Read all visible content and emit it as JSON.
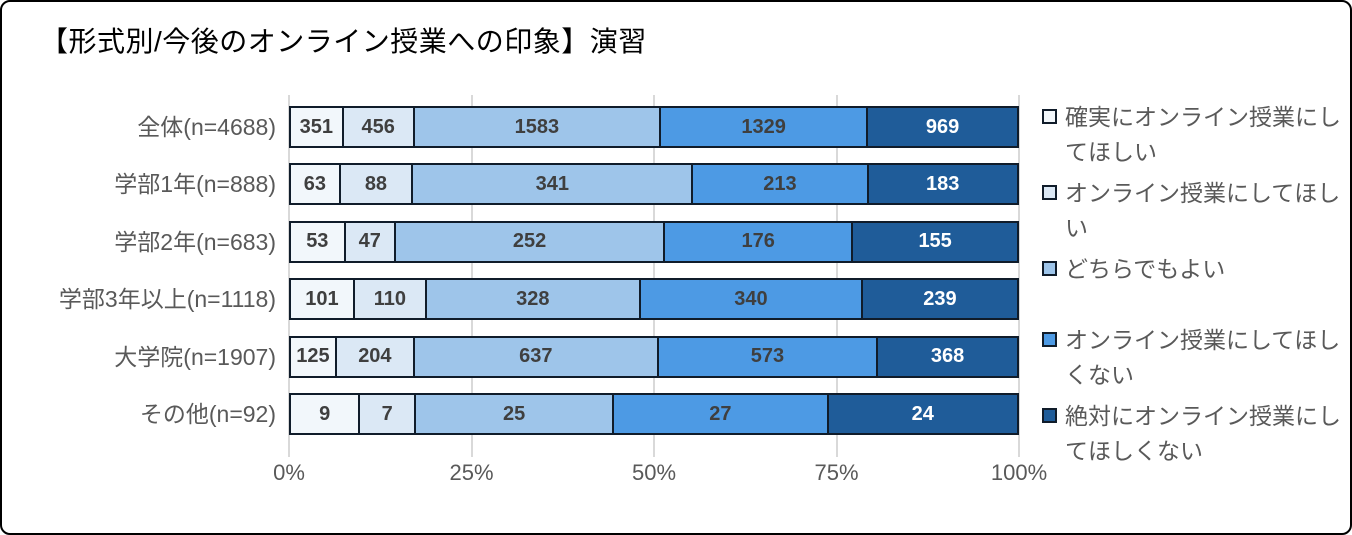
{
  "title": "【形式別/今後のオンライン授業への印象】演習",
  "chart_data": {
    "type": "bar",
    "subtype": "100pct-stacked-horizontal",
    "title": "【形式別/今後のオンライン授業への印象】演習",
    "categories": [
      "全体(n=4688)",
      "学部1年(n=888)",
      "学部2年(n=683)",
      "学部3年以上(n=1118)",
      "大学院(n=1907)",
      "その他(n=92)"
    ],
    "series": [
      {
        "name": "確実にオンライン授業にしてほしい",
        "color": "#F2F7FB",
        "value_text_color": "#3F3F3F",
        "values": [
          351,
          63,
          53,
          101,
          125,
          9
        ]
      },
      {
        "name": "オンライン授業にしてほしい",
        "color": "#DBE8F5",
        "value_text_color": "#3F3F3F",
        "values": [
          456,
          88,
          47,
          110,
          204,
          7
        ]
      },
      {
        "name": "どちらでもよい",
        "color": "#9EC5EA",
        "value_text_color": "#3F3F3F",
        "values": [
          1583,
          341,
          252,
          328,
          637,
          25
        ]
      },
      {
        "name": "オンライン授業にしてほしくない",
        "color": "#4D9AE4",
        "value_text_color": "#3F3F3F",
        "values": [
          1329,
          213,
          176,
          340,
          573,
          27
        ]
      },
      {
        "name": "絶対にオンライン授業にしてほしくない",
        "color": "#1F5C99",
        "value_text_color": "#FFFFFF",
        "values": [
          969,
          183,
          155,
          239,
          368,
          24
        ]
      }
    ],
    "x_ticks": [
      "0%",
      "25%",
      "50%",
      "75%",
      "100%"
    ],
    "xlim": [
      0,
      100
    ],
    "grid": "vertical",
    "legend_position": "right"
  },
  "colors": {
    "outline": "#101C2A",
    "gridline": "#D9D9D9",
    "axis_text": "#595959",
    "title_text": "#000000",
    "background": "#FFFFFF",
    "frame_border": "#000000"
  }
}
